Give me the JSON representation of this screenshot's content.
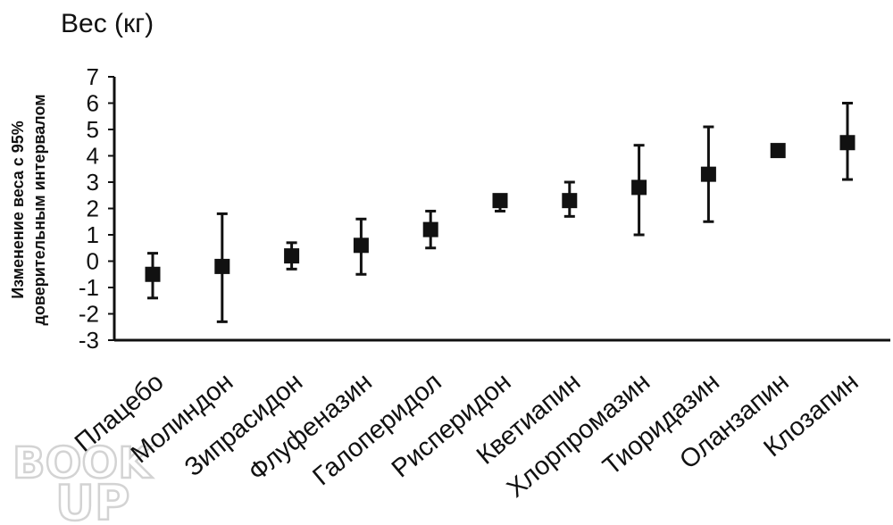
{
  "chart_data": {
    "type": "scatter",
    "title": "Вес (кг)",
    "ylabel_lines": [
      "Изменение веса с 95%",
      "доверительным интервалом"
    ],
    "xlabel": "",
    "ylim": [
      -3,
      7
    ],
    "yticks": [
      "7",
      "6",
      "5",
      "4",
      "3",
      "2",
      "1",
      "0",
      "-1",
      "-2",
      "-3"
    ],
    "grid": false,
    "categories": [
      "Плацебо",
      "Молиндон",
      "Зипрасидон",
      "Флуфеназин",
      "Галоперидол",
      "Рисперидон",
      "Кветиапин",
      "Хлорпромазин",
      "Тиоридазин",
      "Оланзапин",
      "Клозапин"
    ],
    "series": [
      {
        "values": [
          -0.5,
          -0.2,
          0.2,
          0.6,
          1.2,
          2.3,
          2.3,
          2.8,
          3.3,
          4.2,
          4.5
        ],
        "lower": [
          -1.4,
          -2.3,
          -0.3,
          -0.5,
          0.5,
          1.9,
          1.7,
          1.0,
          1.5,
          4.2,
          3.1
        ],
        "upper": [
          0.3,
          1.8,
          0.7,
          1.6,
          1.9,
          2.3,
          3.0,
          4.4,
          5.1,
          4.2,
          6.0
        ]
      }
    ],
    "colors": {
      "marker": "#111111",
      "axis": "#111111"
    }
  },
  "watermark": {
    "top": "BOOK",
    "bottom": "UP"
  }
}
